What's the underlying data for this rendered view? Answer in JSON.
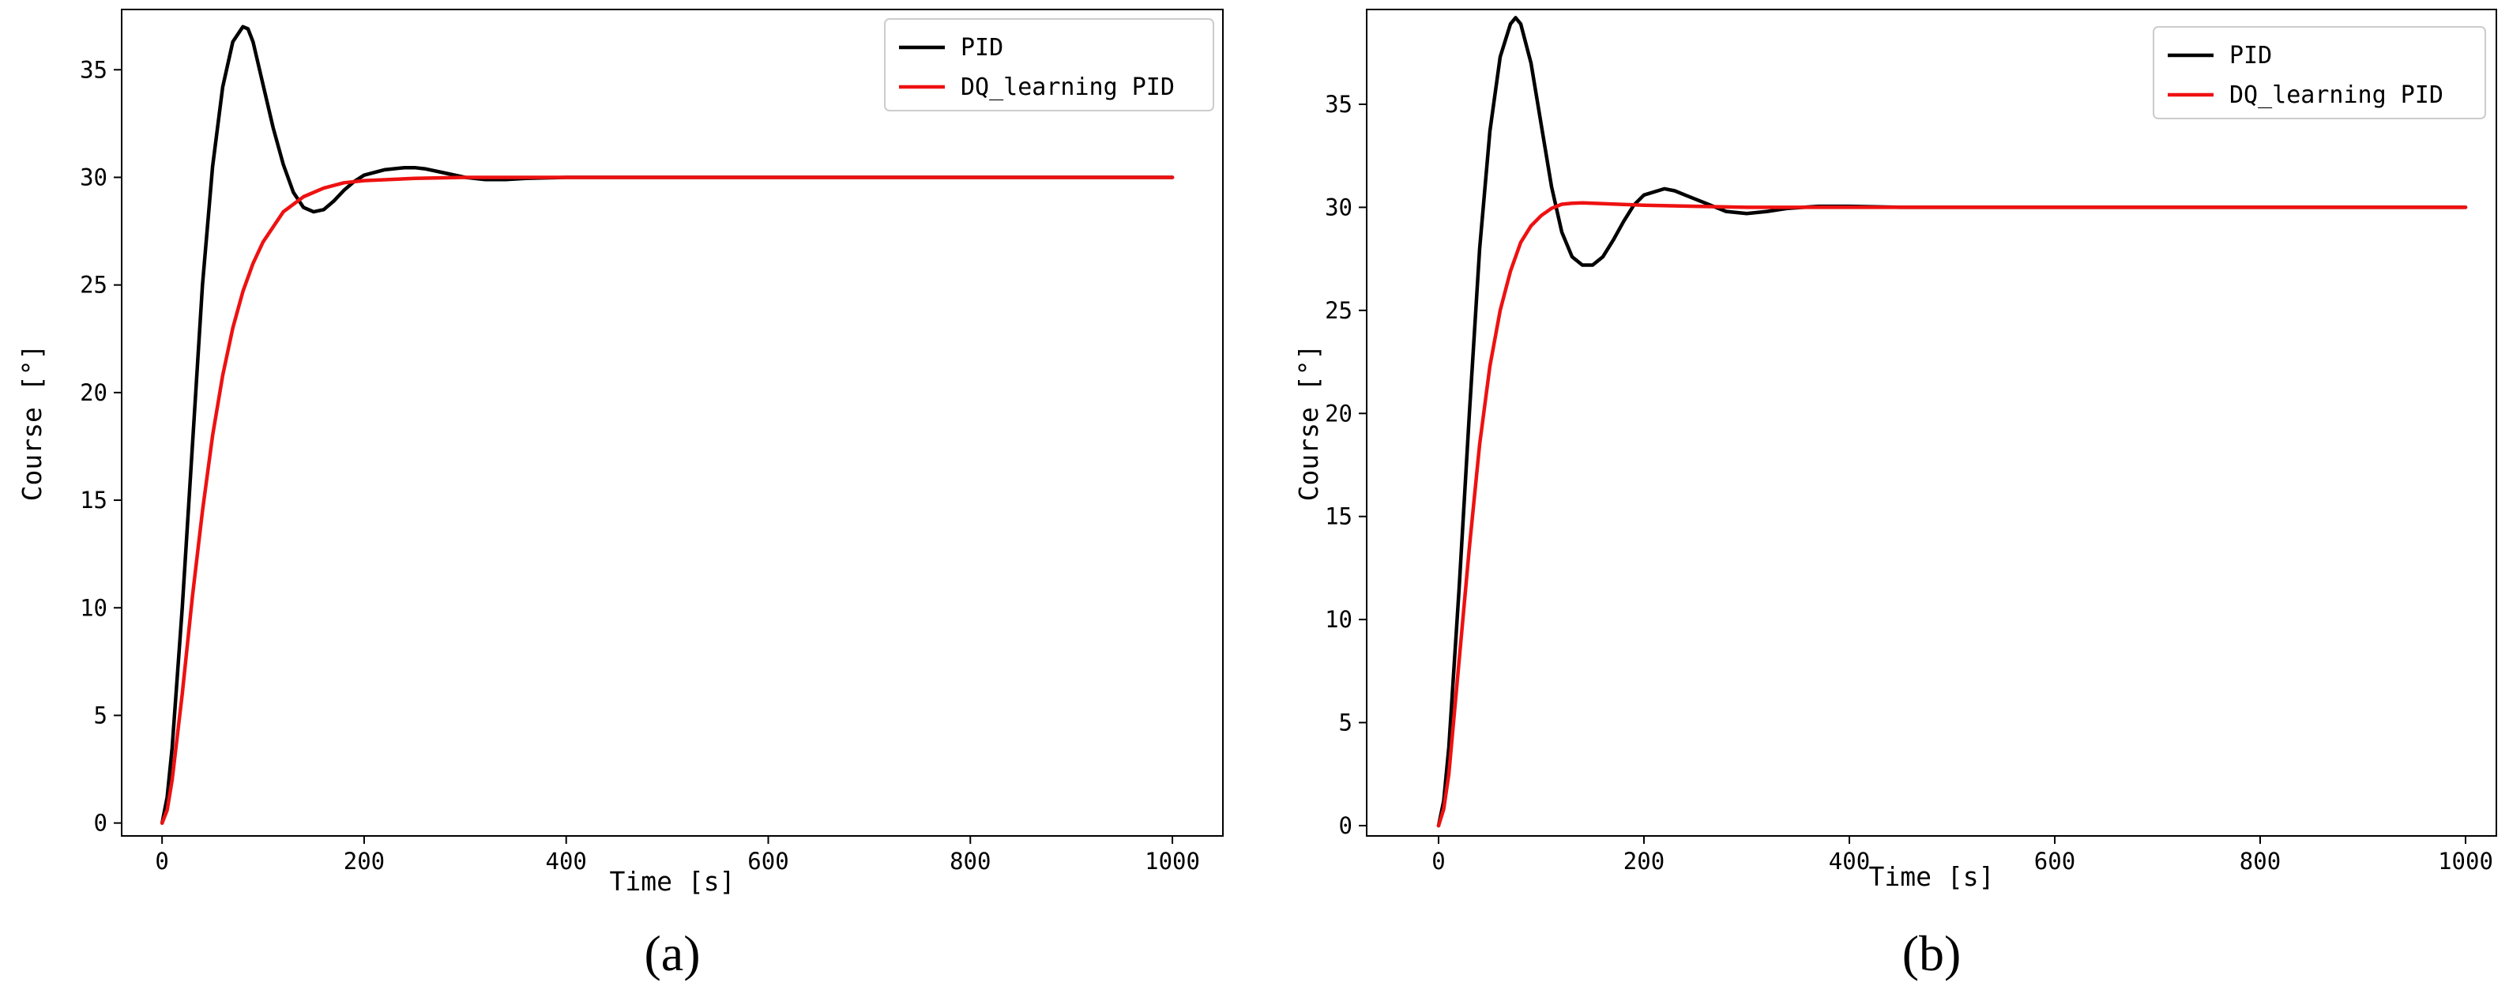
{
  "colors": {
    "pid": "#000000",
    "dq": "#ee1111",
    "frame": "#000000"
  },
  "chart_data": [
    {
      "type": "line",
      "panel_label": "(a)",
      "xlabel": "Time [s]",
      "ylabel": "Course [°]",
      "xlim": [
        -40,
        1050
      ],
      "ylim": [
        -0.6,
        37.8
      ],
      "xticks": [
        0,
        200,
        400,
        600,
        800,
        1000
      ],
      "yticks": [
        0,
        5,
        10,
        15,
        20,
        25,
        30,
        35
      ],
      "grid": false,
      "legend_position": "top-right",
      "series": [
        {
          "name": "PID",
          "color": "#000000",
          "x": [
            0,
            5,
            10,
            20,
            30,
            40,
            50,
            60,
            70,
            80,
            85,
            90,
            100,
            110,
            120,
            130,
            140,
            150,
            160,
            170,
            180,
            190,
            200,
            220,
            240,
            250,
            260,
            280,
            300,
            320,
            340,
            360,
            400,
            500,
            600,
            700,
            800,
            900,
            1000
          ],
          "y": [
            0,
            1.2,
            3.5,
            10,
            17.5,
            25,
            30.5,
            34.2,
            36.3,
            37,
            36.9,
            36.3,
            34.3,
            32.3,
            30.6,
            29.3,
            28.6,
            28.4,
            28.5,
            28.9,
            29.4,
            29.8,
            30.1,
            30.35,
            30.45,
            30.45,
            30.4,
            30.2,
            30.0,
            29.9,
            29.9,
            29.95,
            30.0,
            30.0,
            30.0,
            30.0,
            30.0,
            30.0,
            30.0
          ]
        },
        {
          "name": "DQ_learning PID",
          "color": "#ee1111",
          "x": [
            0,
            5,
            10,
            20,
            30,
            40,
            50,
            60,
            70,
            80,
            90,
            100,
            120,
            140,
            160,
            180,
            200,
            250,
            300,
            400,
            500,
            600,
            700,
            800,
            900,
            1000
          ],
          "y": [
            0,
            0.6,
            2,
            6,
            10.5,
            14.5,
            18,
            20.8,
            23,
            24.7,
            26,
            27,
            28.4,
            29.1,
            29.5,
            29.75,
            29.85,
            29.95,
            30.0,
            30.0,
            30.0,
            30.0,
            30.0,
            30.0,
            30.0,
            30.0
          ]
        }
      ]
    },
    {
      "type": "line",
      "panel_label": "(b)",
      "xlabel": "Time [s]",
      "ylabel": "Course [°]",
      "xlim": [
        -70,
        1030
      ],
      "ylim": [
        -0.5,
        39.6
      ],
      "xticks": [
        0,
        200,
        400,
        600,
        800,
        1000
      ],
      "yticks": [
        0,
        5,
        10,
        15,
        20,
        25,
        30,
        35
      ],
      "grid": false,
      "legend_position": "top-right",
      "series": [
        {
          "name": "PID",
          "color": "#000000",
          "x": [
            0,
            5,
            10,
            20,
            30,
            40,
            50,
            60,
            70,
            75,
            80,
            90,
            100,
            110,
            120,
            130,
            140,
            150,
            160,
            170,
            180,
            190,
            200,
            220,
            230,
            240,
            260,
            280,
            300,
            320,
            340,
            370,
            400,
            450,
            500,
            600,
            700,
            800,
            900,
            1000
          ],
          "y": [
            0,
            1.2,
            3.8,
            11.5,
            20,
            28,
            33.7,
            37.3,
            38.9,
            39.2,
            38.9,
            37,
            34,
            31,
            28.8,
            27.6,
            27.2,
            27.2,
            27.6,
            28.4,
            29.3,
            30.1,
            30.6,
            30.9,
            30.8,
            30.6,
            30.2,
            29.8,
            29.7,
            29.8,
            29.95,
            30.05,
            30.05,
            30.0,
            30.0,
            30.0,
            30.0,
            30.0,
            30.0,
            30.0
          ]
        },
        {
          "name": "DQ_learning PID",
          "color": "#ee1111",
          "x": [
            0,
            5,
            10,
            20,
            30,
            40,
            50,
            60,
            70,
            80,
            90,
            100,
            110,
            120,
            130,
            140,
            150,
            175,
            200,
            250,
            300,
            400,
            500,
            600,
            700,
            800,
            900,
            1000
          ],
          "y": [
            0,
            0.8,
            2.5,
            8,
            13.5,
            18.5,
            22.3,
            25,
            26.9,
            28.3,
            29.1,
            29.6,
            29.95,
            30.15,
            30.2,
            30.22,
            30.2,
            30.15,
            30.1,
            30.05,
            30.0,
            30.0,
            30.0,
            30.0,
            30.0,
            30.0,
            30.0,
            30.0
          ]
        }
      ]
    }
  ]
}
